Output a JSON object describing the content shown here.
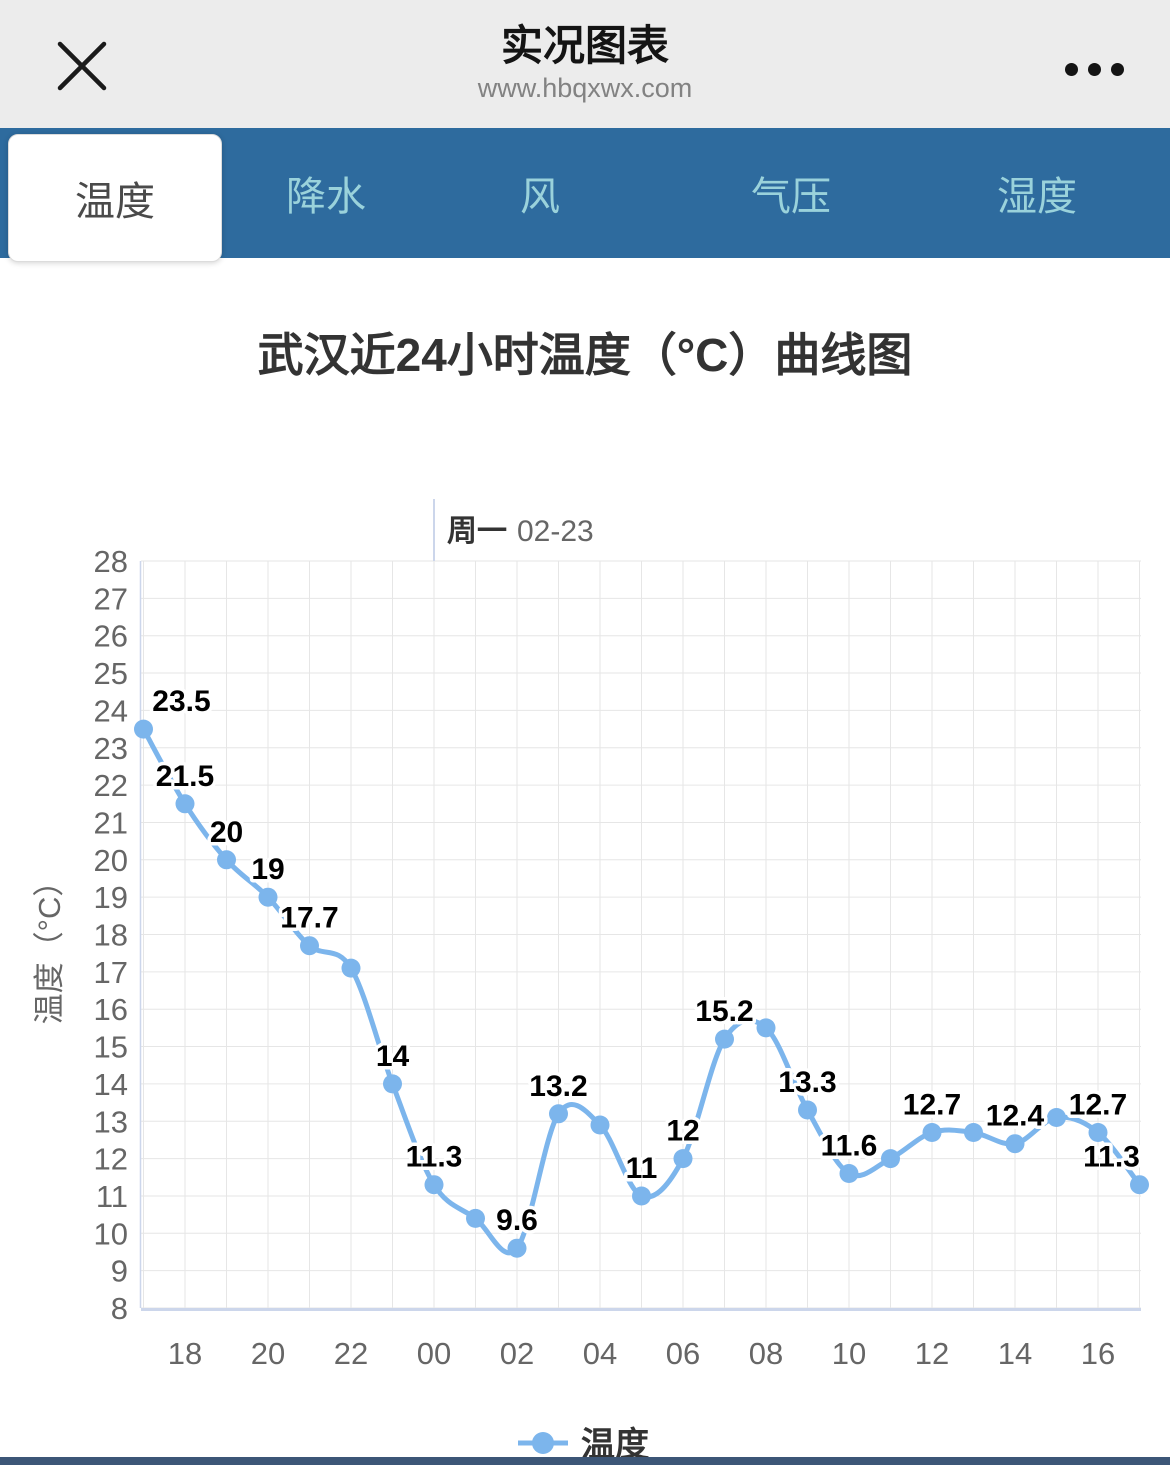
{
  "header": {
    "title": "实况图表",
    "url": "www.hbqxwx.com",
    "close_icon": "close-x",
    "more_icon": "three-dots-menu"
  },
  "tabs": [
    {
      "id": "temperature",
      "label": "温度",
      "active": true
    },
    {
      "id": "precipitation",
      "label": "降水",
      "active": false
    },
    {
      "id": "wind",
      "label": "风",
      "active": false
    },
    {
      "id": "pressure",
      "label": "气压",
      "active": false
    },
    {
      "id": "humidity",
      "label": "湿度",
      "active": false
    }
  ],
  "chart_data": {
    "type": "line",
    "title": "武汉近24小时温度（°C）曲线图",
    "x_hours": [
      "17",
      "18",
      "19",
      "20",
      "21",
      "22",
      "23",
      "00",
      "01",
      "02",
      "03",
      "04",
      "05",
      "06",
      "07",
      "08",
      "09",
      "10",
      "11",
      "12",
      "13",
      "14",
      "15",
      "16",
      "17"
    ],
    "series": [
      {
        "name": "温度",
        "color": "#7cb5ec",
        "values": [
          23.5,
          21.5,
          20,
          19,
          17.7,
          17.1,
          14,
          11.3,
          10.4,
          9.6,
          13.2,
          12.9,
          11,
          12,
          15.2,
          15.5,
          13.3,
          11.6,
          12,
          12.7,
          12.7,
          12.4,
          13.1,
          12.7,
          11.3
        ],
        "data_labels": [
          "23.5",
          "21.5",
          "20",
          "19",
          "17.7",
          null,
          "14",
          "11.3",
          null,
          "9.6",
          "13.2",
          null,
          "11",
          "12",
          "15.2",
          null,
          "13.3",
          "11.6",
          null,
          "12.7",
          null,
          "12.4",
          null,
          "12.7",
          "11.3"
        ]
      }
    ],
    "xticks": [
      "18",
      "20",
      "22",
      "00",
      "02",
      "04",
      "06",
      "08",
      "10",
      "12",
      "14",
      "16"
    ],
    "ylabel": "温度（°C）",
    "ylim": [
      8,
      28
    ],
    "ytick_step": 1,
    "grid": true,
    "day_marker": {
      "weekday": "周一",
      "date": "02-23",
      "hour_index": 7
    },
    "legend": {
      "label": "温度",
      "position": "bottom-center"
    }
  },
  "colors": {
    "series_line": "#7cb5ec",
    "tab_bar": "#2e6b9e",
    "tab_inactive_text": "#9ad2db",
    "grid_line": "#e6e6e6",
    "axis_line": "#ccd6eb",
    "axis_text": "#666666",
    "data_label_text": "#000000",
    "header_bg": "#ececec",
    "bottom_bar": "#3c5677"
  }
}
